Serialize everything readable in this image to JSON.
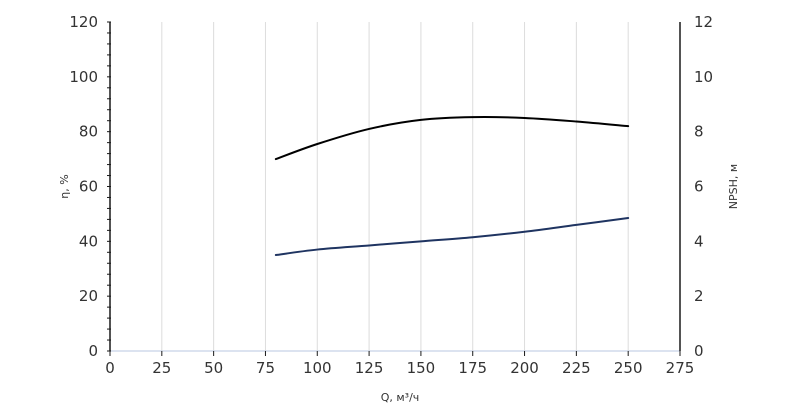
{
  "chart_data": {
    "type": "line",
    "xlabel": "Q, м³/ч",
    "ylabel_left": "η, %",
    "ylabel_right": "NPSH, м",
    "xlim": [
      0,
      275
    ],
    "ylim_left": [
      0,
      120
    ],
    "ylim_right": [
      0,
      12
    ],
    "x_ticks": [
      "0",
      "25",
      "50",
      "75",
      "100",
      "125",
      "150",
      "175",
      "200",
      "225",
      "250",
      "275"
    ],
    "y_left_ticks": [
      "0",
      "20",
      "40",
      "60",
      "80",
      "100",
      "120"
    ],
    "y_right_ticks": [
      "0",
      "2",
      "4",
      "6",
      "8",
      "10",
      "12"
    ],
    "grid": "vertical",
    "series": [
      {
        "axis": "left",
        "color": "#000000",
        "x": [
          80,
          100,
          125,
          150,
          175,
          200,
          225,
          250
        ],
        "y": [
          70,
          75.5,
          81,
          84.3,
          85.3,
          85,
          83.7,
          82
        ]
      },
      {
        "axis": "right",
        "color": "#1f3461",
        "x": [
          80,
          100,
          125,
          150,
          175,
          200,
          225,
          250
        ],
        "y": [
          3.5,
          3.7,
          3.85,
          4.0,
          4.15,
          4.35,
          4.6,
          4.85
        ]
      }
    ]
  }
}
